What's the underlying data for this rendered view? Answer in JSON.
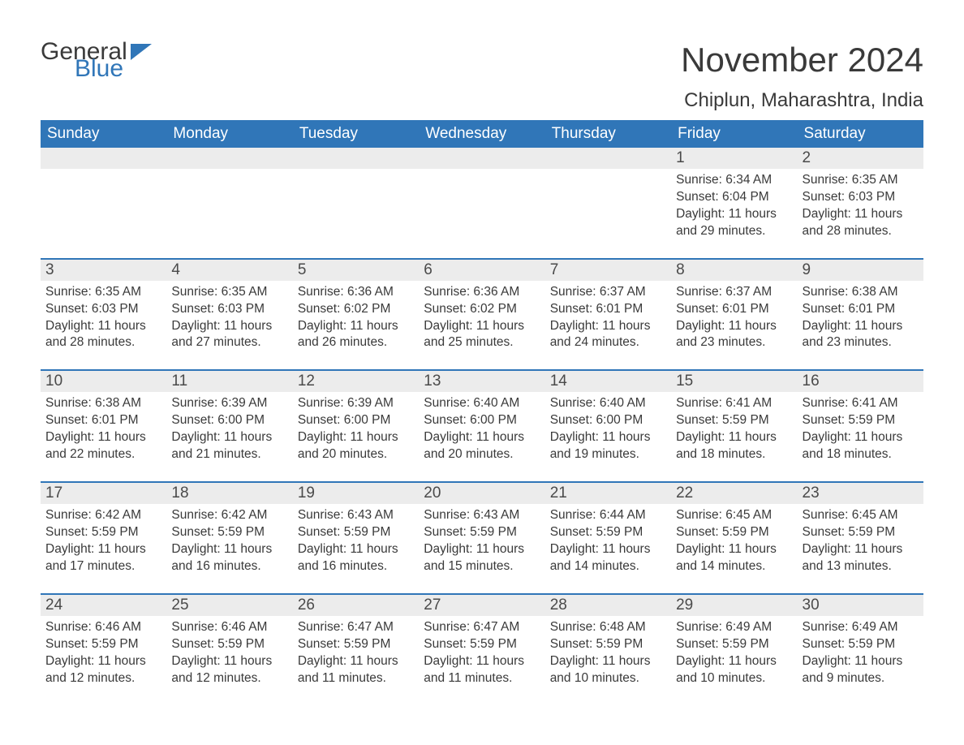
{
  "logo": {
    "line1": "General",
    "line2": "Blue"
  },
  "title": "November 2024",
  "location": "Chiplun, Maharashtra, India",
  "colors": {
    "header_bg": "#3076b8",
    "header_text": "#ffffff",
    "daynum_bg": "#ececec",
    "row_top_border": "#3076b8",
    "body_text": "#3a3a3a",
    "page_bg": "#ffffff"
  },
  "day_headers": [
    "Sunday",
    "Monday",
    "Tuesday",
    "Wednesday",
    "Thursday",
    "Friday",
    "Saturday"
  ],
  "weeks": [
    [
      null,
      null,
      null,
      null,
      null,
      {
        "n": "1",
        "sunrise": "6:34 AM",
        "sunset": "6:04 PM",
        "daylight": "11 hours and 29 minutes."
      },
      {
        "n": "2",
        "sunrise": "6:35 AM",
        "sunset": "6:03 PM",
        "daylight": "11 hours and 28 minutes."
      }
    ],
    [
      {
        "n": "3",
        "sunrise": "6:35 AM",
        "sunset": "6:03 PM",
        "daylight": "11 hours and 28 minutes."
      },
      {
        "n": "4",
        "sunrise": "6:35 AM",
        "sunset": "6:03 PM",
        "daylight": "11 hours and 27 minutes."
      },
      {
        "n": "5",
        "sunrise": "6:36 AM",
        "sunset": "6:02 PM",
        "daylight": "11 hours and 26 minutes."
      },
      {
        "n": "6",
        "sunrise": "6:36 AM",
        "sunset": "6:02 PM",
        "daylight": "11 hours and 25 minutes."
      },
      {
        "n": "7",
        "sunrise": "6:37 AM",
        "sunset": "6:01 PM",
        "daylight": "11 hours and 24 minutes."
      },
      {
        "n": "8",
        "sunrise": "6:37 AM",
        "sunset": "6:01 PM",
        "daylight": "11 hours and 23 minutes."
      },
      {
        "n": "9",
        "sunrise": "6:38 AM",
        "sunset": "6:01 PM",
        "daylight": "11 hours and 23 minutes."
      }
    ],
    [
      {
        "n": "10",
        "sunrise": "6:38 AM",
        "sunset": "6:01 PM",
        "daylight": "11 hours and 22 minutes."
      },
      {
        "n": "11",
        "sunrise": "6:39 AM",
        "sunset": "6:00 PM",
        "daylight": "11 hours and 21 minutes."
      },
      {
        "n": "12",
        "sunrise": "6:39 AM",
        "sunset": "6:00 PM",
        "daylight": "11 hours and 20 minutes."
      },
      {
        "n": "13",
        "sunrise": "6:40 AM",
        "sunset": "6:00 PM",
        "daylight": "11 hours and 20 minutes."
      },
      {
        "n": "14",
        "sunrise": "6:40 AM",
        "sunset": "6:00 PM",
        "daylight": "11 hours and 19 minutes."
      },
      {
        "n": "15",
        "sunrise": "6:41 AM",
        "sunset": "5:59 PM",
        "daylight": "11 hours and 18 minutes."
      },
      {
        "n": "16",
        "sunrise": "6:41 AM",
        "sunset": "5:59 PM",
        "daylight": "11 hours and 18 minutes."
      }
    ],
    [
      {
        "n": "17",
        "sunrise": "6:42 AM",
        "sunset": "5:59 PM",
        "daylight": "11 hours and 17 minutes."
      },
      {
        "n": "18",
        "sunrise": "6:42 AM",
        "sunset": "5:59 PM",
        "daylight": "11 hours and 16 minutes."
      },
      {
        "n": "19",
        "sunrise": "6:43 AM",
        "sunset": "5:59 PM",
        "daylight": "11 hours and 16 minutes."
      },
      {
        "n": "20",
        "sunrise": "6:43 AM",
        "sunset": "5:59 PM",
        "daylight": "11 hours and 15 minutes."
      },
      {
        "n": "21",
        "sunrise": "6:44 AM",
        "sunset": "5:59 PM",
        "daylight": "11 hours and 14 minutes."
      },
      {
        "n": "22",
        "sunrise": "6:45 AM",
        "sunset": "5:59 PM",
        "daylight": "11 hours and 14 minutes."
      },
      {
        "n": "23",
        "sunrise": "6:45 AM",
        "sunset": "5:59 PM",
        "daylight": "11 hours and 13 minutes."
      }
    ],
    [
      {
        "n": "24",
        "sunrise": "6:46 AM",
        "sunset": "5:59 PM",
        "daylight": "11 hours and 12 minutes."
      },
      {
        "n": "25",
        "sunrise": "6:46 AM",
        "sunset": "5:59 PM",
        "daylight": "11 hours and 12 minutes."
      },
      {
        "n": "26",
        "sunrise": "6:47 AM",
        "sunset": "5:59 PM",
        "daylight": "11 hours and 11 minutes."
      },
      {
        "n": "27",
        "sunrise": "6:47 AM",
        "sunset": "5:59 PM",
        "daylight": "11 hours and 11 minutes."
      },
      {
        "n": "28",
        "sunrise": "6:48 AM",
        "sunset": "5:59 PM",
        "daylight": "11 hours and 10 minutes."
      },
      {
        "n": "29",
        "sunrise": "6:49 AM",
        "sunset": "5:59 PM",
        "daylight": "11 hours and 10 minutes."
      },
      {
        "n": "30",
        "sunrise": "6:49 AM",
        "sunset": "5:59 PM",
        "daylight": "11 hours and 9 minutes."
      }
    ]
  ],
  "labels": {
    "sunrise": "Sunrise: ",
    "sunset": "Sunset: ",
    "daylight": "Daylight: "
  }
}
